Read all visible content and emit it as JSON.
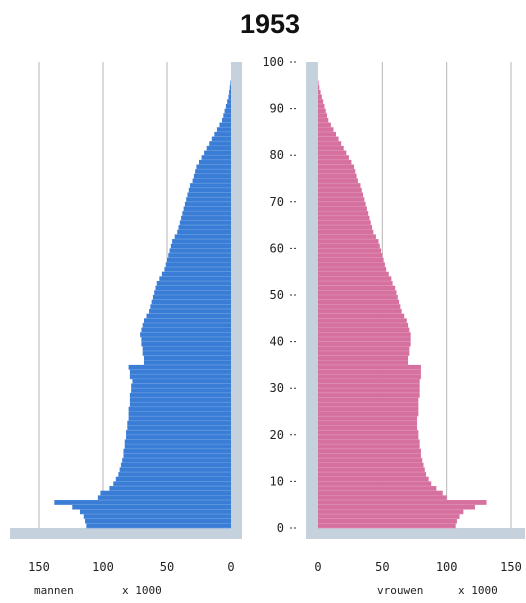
{
  "chart_data": {
    "type": "bar",
    "subtype": "population-pyramid",
    "title": "1953",
    "left_label": "mannen",
    "right_label": "vrouwen",
    "unit_label": "x 1000",
    "age_ticks": [
      "0",
      "10",
      "20",
      "30",
      "40",
      "50",
      "60",
      "70",
      "80",
      "90",
      "100"
    ],
    "value_ticks": [
      "150",
      "100",
      "50",
      "0"
    ],
    "value_max": 150,
    "age_max": 100,
    "grid": true,
    "colors": {
      "male": "#3a7dd6",
      "female": "#d6709e",
      "frame": "#c5d2de",
      "grid": "#b5b5b5"
    },
    "ages": [
      0,
      1,
      2,
      3,
      4,
      5,
      6,
      7,
      8,
      9,
      10,
      11,
      12,
      13,
      14,
      15,
      16,
      17,
      18,
      19,
      20,
      21,
      22,
      23,
      24,
      25,
      26,
      27,
      28,
      29,
      30,
      31,
      32,
      33,
      34,
      35,
      36,
      37,
      38,
      39,
      40,
      41,
      42,
      43,
      44,
      45,
      46,
      47,
      48,
      49,
      50,
      51,
      52,
      53,
      54,
      55,
      56,
      57,
      58,
      59,
      60,
      61,
      62,
      63,
      64,
      65,
      66,
      67,
      68,
      69,
      70,
      71,
      72,
      73,
      74,
      75,
      76,
      77,
      78,
      79,
      80,
      81,
      82,
      83,
      84,
      85,
      86,
      87,
      88,
      89,
      90,
      91,
      92,
      93,
      94,
      95
    ],
    "series": [
      {
        "name": "mannen",
        "values": [
          113,
          114,
          115,
          118,
          124,
          138,
          104,
          102,
          95,
          92,
          90,
          88,
          87,
          86,
          85,
          84,
          84,
          83,
          83,
          82,
          82,
          81,
          81,
          80,
          80,
          80,
          79,
          79,
          79,
          78,
          78,
          77,
          79,
          79,
          80,
          68,
          68,
          69,
          69,
          70,
          70,
          71,
          70,
          69,
          68,
          66,
          64,
          63,
          62,
          61,
          60,
          59,
          58,
          56,
          54,
          52,
          51,
          50,
          49,
          48,
          47,
          46,
          44,
          42,
          41,
          40,
          39,
          38,
          37,
          36,
          35,
          34,
          33,
          32,
          30,
          29,
          28,
          27,
          25,
          23,
          21,
          19,
          17,
          15,
          13,
          11,
          9,
          7,
          6,
          5,
          4,
          3,
          2,
          1.5,
          1,
          0.5
        ]
      },
      {
        "name": "vrouwen",
        "values": [
          107,
          108,
          110,
          113,
          122,
          131,
          100,
          97,
          92,
          88,
          86,
          84,
          83,
          82,
          81,
          80,
          80,
          79,
          79,
          78,
          78,
          77,
          77,
          77,
          78,
          78,
          78,
          78,
          79,
          79,
          79,
          79,
          80,
          80,
          80,
          70,
          70,
          71,
          71,
          72,
          72,
          72,
          71,
          70,
          69,
          67,
          65,
          64,
          63,
          62,
          61,
          60,
          58,
          57,
          55,
          53,
          52,
          51,
          50,
          49,
          48,
          47,
          45,
          43,
          42,
          41,
          40,
          39,
          38,
          37,
          36,
          35,
          34,
          33,
          31,
          30,
          29,
          28,
          26,
          24,
          22,
          20,
          18,
          16,
          14,
          12,
          10,
          8,
          7,
          6,
          5,
          4,
          3,
          2,
          1,
          0.5
        ]
      }
    ]
  }
}
